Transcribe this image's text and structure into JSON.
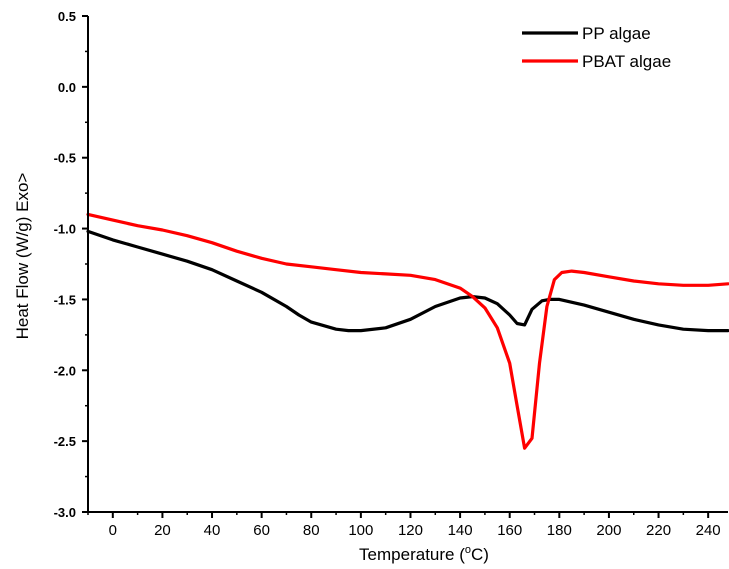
{
  "chart_data": {
    "type": "line",
    "title": "",
    "xlabel": "Temperature (°C)",
    "xlabel_parts": {
      "prefix": "Temperature (",
      "sup": "o",
      "suffix": "C)"
    },
    "ylabel": "Heat Flow (W/g) Exo>",
    "xlim": [
      -10,
      248
    ],
    "ylim": [
      -3.0,
      0.5
    ],
    "x_ticks": [
      0,
      20,
      40,
      60,
      80,
      100,
      120,
      140,
      160,
      180,
      200,
      220,
      240
    ],
    "x_tick_labels": [
      "0",
      "20",
      "40",
      "60",
      "80",
      "100",
      "120",
      "140",
      "160",
      "180",
      "200",
      "220",
      "240"
    ],
    "y_ticks": [
      -3.0,
      -2.5,
      -2.0,
      -1.5,
      -1.0,
      -0.5,
      0.0,
      0.5
    ],
    "y_tick_labels": [
      "-3.0",
      "-2.5",
      "-2.0",
      "-1.5",
      "-1.0",
      "-0.5",
      "0.0",
      "0.5"
    ],
    "grid": false,
    "legend_position": "top-right",
    "series": [
      {
        "name": "PP algae",
        "color": "#000000",
        "points": [
          [
            -10,
            -1.02
          ],
          [
            0,
            -1.08
          ],
          [
            10,
            -1.13
          ],
          [
            20,
            -1.18
          ],
          [
            30,
            -1.23
          ],
          [
            40,
            -1.29
          ],
          [
            50,
            -1.37
          ],
          [
            60,
            -1.45
          ],
          [
            70,
            -1.55
          ],
          [
            75,
            -1.61
          ],
          [
            80,
            -1.66
          ],
          [
            90,
            -1.71
          ],
          [
            95,
            -1.72
          ],
          [
            100,
            -1.72
          ],
          [
            110,
            -1.7
          ],
          [
            120,
            -1.64
          ],
          [
            130,
            -1.55
          ],
          [
            140,
            -1.49
          ],
          [
            145,
            -1.48
          ],
          [
            150,
            -1.49
          ],
          [
            155,
            -1.53
          ],
          [
            160,
            -1.61
          ],
          [
            163,
            -1.67
          ],
          [
            166,
            -1.68
          ],
          [
            169,
            -1.57
          ],
          [
            173,
            -1.51
          ],
          [
            176,
            -1.5
          ],
          [
            180,
            -1.5
          ],
          [
            190,
            -1.54
          ],
          [
            200,
            -1.59
          ],
          [
            210,
            -1.64
          ],
          [
            220,
            -1.68
          ],
          [
            230,
            -1.71
          ],
          [
            240,
            -1.72
          ],
          [
            248,
            -1.72
          ]
        ]
      },
      {
        "name": "PBAT algae",
        "color": "#ff0000",
        "points": [
          [
            -10,
            -0.9
          ],
          [
            0,
            -0.94
          ],
          [
            10,
            -0.98
          ],
          [
            20,
            -1.01
          ],
          [
            30,
            -1.05
          ],
          [
            40,
            -1.1
          ],
          [
            50,
            -1.16
          ],
          [
            60,
            -1.21
          ],
          [
            70,
            -1.25
          ],
          [
            80,
            -1.27
          ],
          [
            90,
            -1.29
          ],
          [
            100,
            -1.31
          ],
          [
            110,
            -1.32
          ],
          [
            120,
            -1.33
          ],
          [
            130,
            -1.36
          ],
          [
            140,
            -1.42
          ],
          [
            145,
            -1.48
          ],
          [
            150,
            -1.56
          ],
          [
            155,
            -1.7
          ],
          [
            160,
            -1.95
          ],
          [
            163,
            -2.25
          ],
          [
            166,
            -2.55
          ],
          [
            169,
            -2.48
          ],
          [
            172,
            -1.95
          ],
          [
            175,
            -1.55
          ],
          [
            178,
            -1.36
          ],
          [
            181,
            -1.31
          ],
          [
            185,
            -1.3
          ],
          [
            190,
            -1.31
          ],
          [
            200,
            -1.34
          ],
          [
            210,
            -1.37
          ],
          [
            220,
            -1.39
          ],
          [
            230,
            -1.4
          ],
          [
            240,
            -1.4
          ],
          [
            248,
            -1.39
          ]
        ]
      }
    ]
  }
}
